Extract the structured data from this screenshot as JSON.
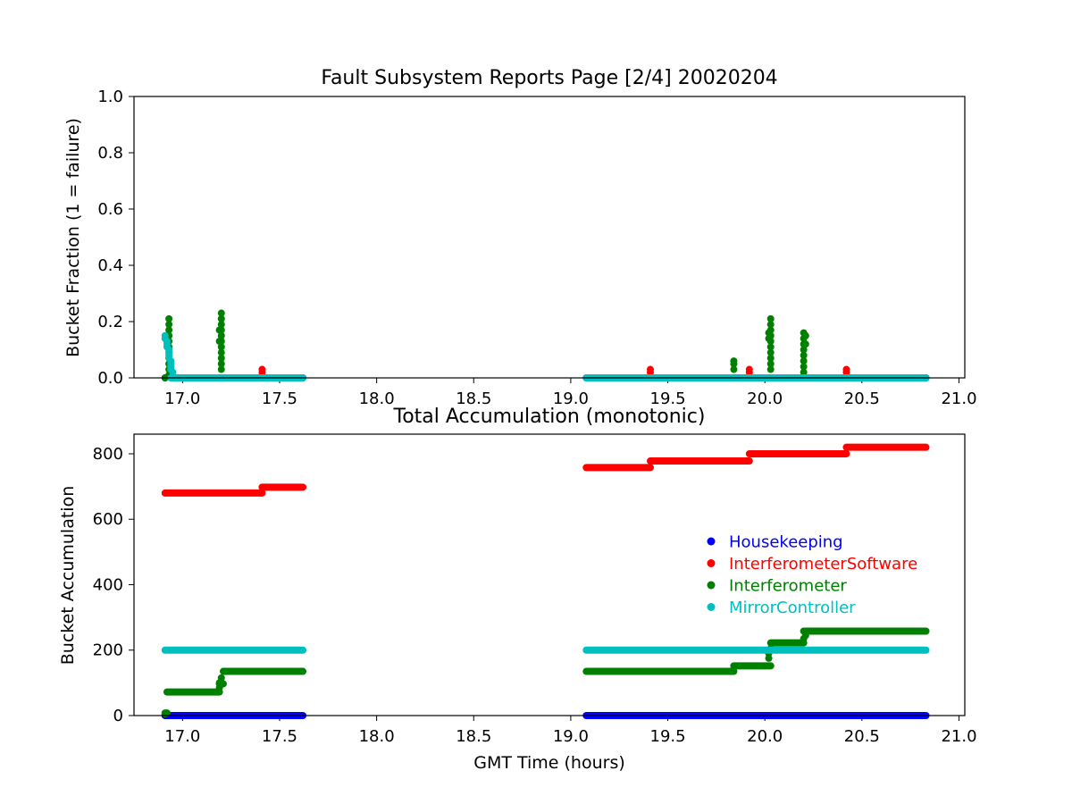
{
  "chart_data": [
    {
      "type": "scatter",
      "title": "Fault Subsystem Reports Page [2/4] 20020204",
      "xlabel": "",
      "ylabel": "Bucket Fraction (1 = failure)",
      "xlim": [
        16.75,
        21.03
      ],
      "ylim": [
        0,
        1.0
      ],
      "xticks": [
        "17.0",
        "17.5",
        "18.0",
        "18.5",
        "19.0",
        "19.5",
        "20.0",
        "20.5",
        "21.0"
      ],
      "yticks": [
        "0.0",
        "0.2",
        "0.4",
        "0.6",
        "0.8",
        "1.0"
      ],
      "grid": false,
      "series": [
        {
          "name": "Housekeeping",
          "color": "#0000ff",
          "points": [
            [
              16.91,
              0
            ],
            [
              17.62,
              0
            ],
            [
              19.08,
              0
            ],
            [
              20.83,
              0
            ]
          ]
        },
        {
          "name": "InterferometerSoftware",
          "color": "#ff0000",
          "points": [
            [
              17.41,
              0.03
            ],
            [
              17.41,
              0.02
            ],
            [
              19.41,
              0.03
            ],
            [
              19.41,
              0.02
            ],
            [
              19.92,
              0.03
            ],
            [
              19.92,
              0.02
            ],
            [
              20.42,
              0.03
            ],
            [
              20.42,
              0.02
            ]
          ]
        },
        {
          "name": "Interferometer",
          "color": "#008000",
          "points": [
            [
              16.93,
              0.21
            ],
            [
              16.93,
              0.19
            ],
            [
              16.93,
              0.17
            ],
            [
              16.93,
              0.15
            ],
            [
              16.93,
              0.13
            ],
            [
              16.93,
              0.11
            ],
            [
              16.93,
              0.09
            ],
            [
              16.93,
              0.07
            ],
            [
              16.93,
              0.05
            ],
            [
              16.93,
              0.03
            ],
            [
              16.93,
              0.01
            ],
            [
              16.91,
              0.0
            ],
            [
              17.2,
              0.23
            ],
            [
              17.2,
              0.21
            ],
            [
              17.2,
              0.19
            ],
            [
              17.2,
              0.17
            ],
            [
              17.2,
              0.15
            ],
            [
              17.2,
              0.13
            ],
            [
              17.2,
              0.11
            ],
            [
              17.2,
              0.09
            ],
            [
              17.2,
              0.07
            ],
            [
              17.2,
              0.05
            ],
            [
              17.2,
              0.03
            ],
            [
              17.19,
              0.13
            ],
            [
              17.19,
              0.17
            ],
            [
              19.84,
              0.06
            ],
            [
              19.84,
              0.05
            ],
            [
              19.84,
              0.03
            ],
            [
              20.02,
              0.16
            ],
            [
              20.02,
              0.14
            ],
            [
              20.03,
              0.21
            ],
            [
              20.03,
              0.19
            ],
            [
              20.03,
              0.17
            ],
            [
              20.03,
              0.15
            ],
            [
              20.03,
              0.13
            ],
            [
              20.03,
              0.11
            ],
            [
              20.03,
              0.09
            ],
            [
              20.03,
              0.07
            ],
            [
              20.03,
              0.05
            ],
            [
              20.03,
              0.03
            ],
            [
              20.2,
              0.16
            ],
            [
              20.2,
              0.14
            ],
            [
              20.2,
              0.12
            ],
            [
              20.2,
              0.1
            ],
            [
              20.2,
              0.08
            ],
            [
              20.2,
              0.06
            ],
            [
              20.2,
              0.04
            ],
            [
              20.2,
              0.02
            ],
            [
              20.21,
              0.15
            ],
            [
              20.21,
              0.12
            ]
          ]
        },
        {
          "name": "MirrorController",
          "color": "#00bfbf",
          "points": [
            [
              16.91,
              0.15
            ],
            [
              16.91,
              0.14
            ],
            [
              16.92,
              0.13
            ],
            [
              16.92,
              0.12
            ],
            [
              16.92,
              0.11
            ],
            [
              16.93,
              0.1
            ],
            [
              16.93,
              0.09
            ],
            [
              16.93,
              0.08
            ],
            [
              16.93,
              0.07
            ],
            [
              16.94,
              0.06
            ],
            [
              16.94,
              0.05
            ],
            [
              16.94,
              0.04
            ],
            [
              16.94,
              0.03
            ],
            [
              16.95,
              0.02
            ]
          ],
          "flat": [
            [
              16.94,
              17.62,
              0
            ],
            [
              19.08,
              20.83,
              0
            ]
          ]
        }
      ]
    },
    {
      "type": "scatter",
      "title": "Total Accumulation (monotonic)",
      "xlabel": "GMT Time (hours)",
      "ylabel": "Bucket Accumulation",
      "xlim": [
        16.75,
        21.03
      ],
      "ylim": [
        0,
        860
      ],
      "xticks": [
        "17.0",
        "17.5",
        "18.0",
        "18.5",
        "19.0",
        "19.5",
        "20.0",
        "20.5",
        "21.0"
      ],
      "yticks": [
        "0",
        "200",
        "400",
        "600",
        "800"
      ],
      "grid": false,
      "legend_position": "center-right",
      "series": [
        {
          "name": "Housekeeping",
          "color": "#0000ff",
          "segments": [
            [
              16.91,
              17.62,
              0
            ],
            [
              19.08,
              20.83,
              0
            ]
          ]
        },
        {
          "name": "InterferometerSoftware",
          "color": "#ff0000",
          "segments": [
            [
              16.91,
              17.41,
              680
            ],
            [
              17.41,
              17.62,
              698
            ],
            [
              19.08,
              19.41,
              758
            ],
            [
              19.41,
              19.92,
              778
            ],
            [
              19.92,
              20.42,
              800
            ],
            [
              20.42,
              20.83,
              820
            ]
          ]
        },
        {
          "name": "Interferometer",
          "color": "#008000",
          "segments": [
            [
              16.91,
              16.92,
              8
            ],
            [
              16.92,
              17.19,
              72
            ],
            [
              17.19,
              17.21,
              97
            ],
            [
              17.21,
              17.62,
              135
            ],
            [
              19.08,
              19.84,
              135
            ],
            [
              19.84,
              20.03,
              152
            ],
            [
              20.03,
              20.2,
              222
            ],
            [
              20.2,
              20.83,
              258
            ]
          ],
          "points": [
            [
              16.91,
              5
            ],
            [
              17.19,
              85
            ],
            [
              17.19,
              100
            ],
            [
              17.2,
              115
            ],
            [
              20.02,
              175
            ],
            [
              20.02,
              190
            ],
            [
              20.03,
              205
            ],
            [
              20.2,
              235
            ],
            [
              20.21,
              245
            ]
          ]
        },
        {
          "name": "MirrorController",
          "color": "#00bfbf",
          "segments": [
            [
              16.91,
              17.62,
              200
            ],
            [
              19.08,
              20.83,
              200
            ]
          ]
        }
      ]
    }
  ]
}
